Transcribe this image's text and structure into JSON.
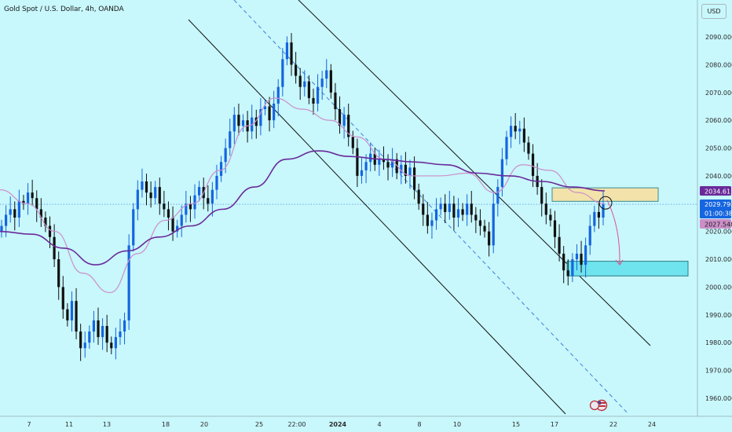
{
  "header": {
    "title": "Gold Spot / U.S. Dollar, 4h, OANDA",
    "currency": "USD"
  },
  "price_tags": {
    "upper": "2034.611",
    "current": "2029.790",
    "countdown": "01:00:38",
    "lower": "2027.548"
  },
  "colors": {
    "background": "#c8f7fc",
    "bull": "#1565e0",
    "bear": "#111111",
    "ma_fast": "#cc8fc8",
    "ma_slow": "#6a2a9a",
    "channel": "#111111",
    "dashed": "#3d7fd8",
    "resistance_zone": "#f3e3aa",
    "target_zone": "#6fe3ee",
    "arrow": "#e0508a",
    "tag_upper": "#6a2a9a",
    "tag_current": "#1565e0",
    "tag_lower": "#cc8fc8"
  },
  "chart_data": {
    "type": "candlestick",
    "title": "Gold Spot / U.S. Dollar, 4h, OANDA",
    "y_axis": {
      "ticks": [
        1960,
        1970,
        1980,
        1990,
        2000,
        2010,
        2020,
        2030,
        2040,
        2050,
        2060,
        2070,
        2080,
        2090
      ],
      "tick_labels": [
        "1960.000",
        "1970.000",
        "1980.000",
        "1990.000",
        "2000.000",
        "2010.000",
        "2020.000",
        "2030.000",
        "2040.000",
        "2050.000",
        "2060.000",
        "2070.000",
        "2080.000",
        "2090.000"
      ],
      "range": [
        1956,
        2103
      ]
    },
    "x_axis": {
      "labels": [
        "7",
        "11",
        "13",
        "18",
        "20",
        "25",
        "22:00",
        "2024",
        "4",
        "8",
        "10",
        "15",
        "17",
        "22",
        "24"
      ]
    },
    "price_path": [
      2022,
      2026,
      2028,
      2025,
      2031,
      2030,
      2034,
      2032,
      2028,
      2025,
      2022,
      2018,
      2010,
      2000,
      1992,
      1988,
      1995,
      1984,
      1978,
      1980,
      1984,
      1988,
      1982,
      1986,
      1980,
      1978,
      1982,
      1984,
      1988,
      2015,
      2028,
      2035,
      2038,
      2034,
      2032,
      2036,
      2030,
      2028,
      2025,
      2020,
      2022,
      2026,
      2030,
      2028,
      2033,
      2036,
      2032,
      2030,
      2035,
      2040,
      2045,
      2050,
      2056,
      2062,
      2058,
      2060,
      2056,
      2061,
      2058,
      2064,
      2065,
      2060,
      2066,
      2072,
      2082,
      2088,
      2080,
      2076,
      2072,
      2074,
      2068,
      2066,
      2072,
      2075,
      2078,
      2070,
      2064,
      2058,
      2062,
      2054,
      2050,
      2040,
      2042,
      2045,
      2048,
      2044,
      2046,
      2045,
      2043,
      2046,
      2041,
      2044,
      2040,
      2043,
      2035,
      2030,
      2026,
      2022,
      2024,
      2028,
      2030,
      2027,
      2030,
      2025,
      2028,
      2026,
      2030,
      2026,
      2024,
      2022,
      2020,
      2015,
      2030,
      2036,
      2046,
      2054,
      2058,
      2056,
      2057,
      2052,
      2048,
      2040,
      2036,
      2030,
      2026,
      2024,
      2018,
      2012,
      2006,
      2004,
      2010,
      2012,
      2008,
      2015,
      2022,
      2027,
      2025,
      2029.79
    ],
    "series": [
      {
        "name": "",
        "type": "ma_fast",
        "values": [
          2035,
          2030,
          2020,
          2005,
          1998,
          2012,
          2024,
          2030,
          2042,
          2058,
          2068,
          2064,
          2060,
          2054,
          2046,
          2040,
          2040,
          2041,
          2034,
          2044,
          2042,
          2034,
          2030
        ]
      },
      {
        "name": "",
        "type": "ma_slow",
        "values": [
          2020,
          2019,
          2014,
          2008,
          2013,
          2018,
          2022,
          2028,
          2036,
          2046,
          2049,
          2047,
          2046,
          2045,
          2044,
          2041,
          2040,
          2038,
          2036,
          2034.61
        ]
      }
    ],
    "annotations": {
      "resistance_zone": [
        2030,
        2034
      ],
      "target_zone": [
        2004,
        2009
      ],
      "projection_from": 2033,
      "projection_to": 2010
    }
  }
}
